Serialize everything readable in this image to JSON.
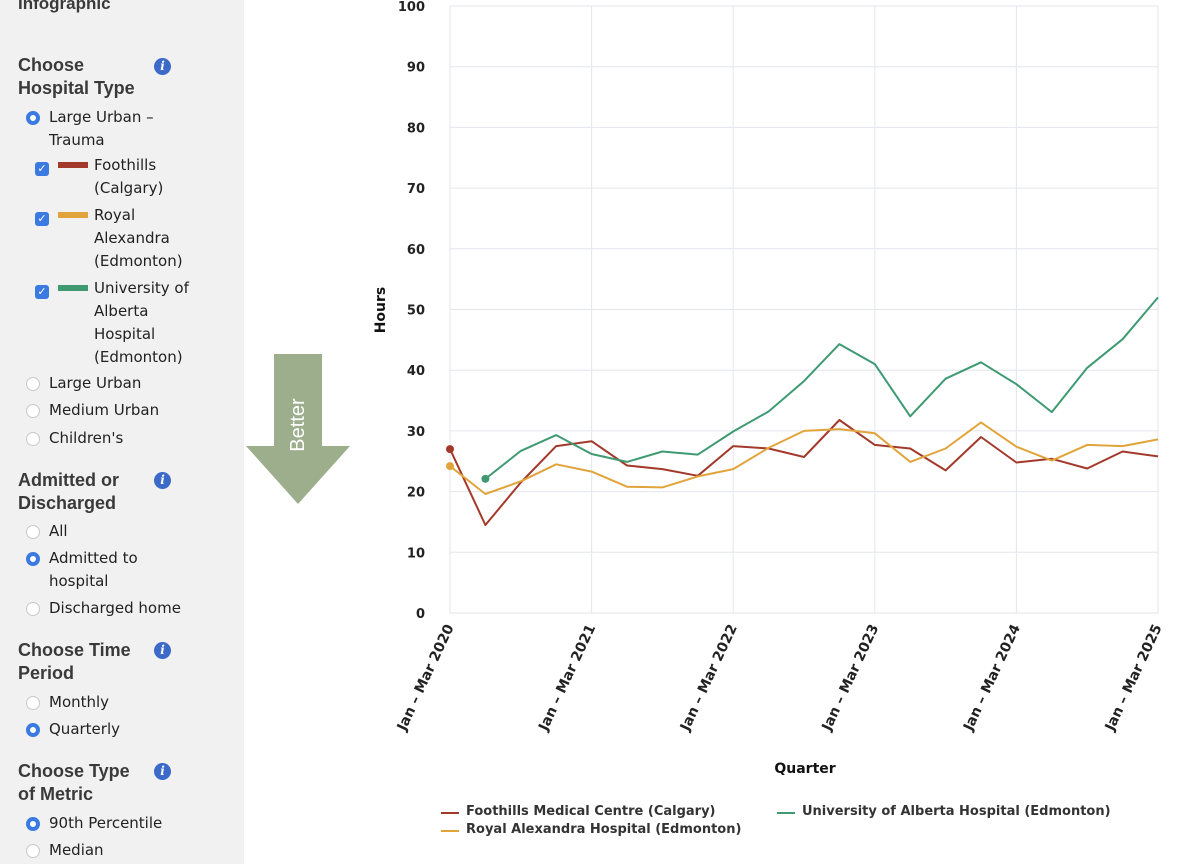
{
  "sidebar": {
    "edge_label": "Infographic",
    "hospital_type": {
      "title": "Choose Hospital Type",
      "options": [
        {
          "label": "Large Urban – Trauma",
          "selected": true
        },
        {
          "label": "Large Urban",
          "selected": false
        },
        {
          "label": "Medium Urban",
          "selected": false
        },
        {
          "label": "Children's",
          "selected": false
        }
      ],
      "sub_options": [
        {
          "label": "Foothills (Calgary)",
          "checked": true,
          "color": "#a3392b"
        },
        {
          "label": "Royal Alexandra (Edmonton)",
          "checked": true,
          "color": "#e0a43a"
        },
        {
          "label": "University of Alberta Hospital (Edmonton)",
          "checked": true,
          "color": "#3f9a72"
        }
      ]
    },
    "admitted": {
      "title": "Admitted or Discharged",
      "options": [
        {
          "label": "All",
          "selected": false
        },
        {
          "label": "Admitted to hospital",
          "selected": true
        },
        {
          "label": "Discharged home",
          "selected": false
        }
      ]
    },
    "time_period": {
      "title": "Choose Time Period",
      "options": [
        {
          "label": "Monthly",
          "selected": false
        },
        {
          "label": "Quarterly",
          "selected": true
        }
      ]
    },
    "metric": {
      "title": "Choose Type of Metric",
      "options": [
        {
          "label": "90th Percentile",
          "selected": true
        },
        {
          "label": "Median",
          "selected": false
        }
      ]
    }
  },
  "better_arrow": {
    "label": "Better",
    "color": "#9cae8c"
  },
  "chart_data": {
    "type": "line",
    "xlabel": "Quarter",
    "ylabel": "Hours",
    "ylim": [
      0,
      100
    ],
    "yticks": [
      0,
      10,
      20,
      30,
      40,
      50,
      60,
      70,
      80,
      90,
      100
    ],
    "x_tick_labels": [
      "Jan – Mar 2020",
      "Jan – Mar 2021",
      "Jan – Mar 2022",
      "Jan – Mar 2023",
      "Jan – Mar 2024",
      "Jan – Mar 2025"
    ],
    "x_tick_quarter_index": [
      0,
      4,
      8,
      12,
      16,
      20
    ],
    "grid": true,
    "legend_position": "bottom",
    "series": [
      {
        "name": "Foothills Medical Centre (Calgary)",
        "color": "#a3392b",
        "values": [
          27,
          14.5,
          21.5,
          27.5,
          28.3,
          24.3,
          23.7,
          22.6,
          27.5,
          27.1,
          25.7,
          31.8,
          27.7,
          27.1,
          23.5,
          29,
          24.8,
          25.4,
          23.8,
          26.6,
          25.8
        ]
      },
      {
        "name": "Royal Alexandra Hospital (Edmonton)",
        "color": "#e0a43a",
        "values": [
          24.2,
          19.6,
          21.7,
          24.5,
          23.3,
          20.8,
          20.7,
          22.5,
          23.7,
          27.2,
          30,
          30.3,
          29.6,
          24.9,
          27.1,
          31.4,
          27.4,
          25.1,
          27.7,
          27.5,
          28.6
        ]
      },
      {
        "name": "University of Alberta Hospital (Edmonton)",
        "color": "#3f9a72",
        "values": [
          null,
          22.1,
          26.7,
          29.3,
          26.2,
          24.9,
          26.6,
          26.1,
          29.9,
          33.2,
          38.2,
          44.3,
          41,
          32.4,
          38.6,
          41.3,
          37.7,
          33.1,
          40.4,
          45.1,
          52
        ]
      }
    ]
  }
}
